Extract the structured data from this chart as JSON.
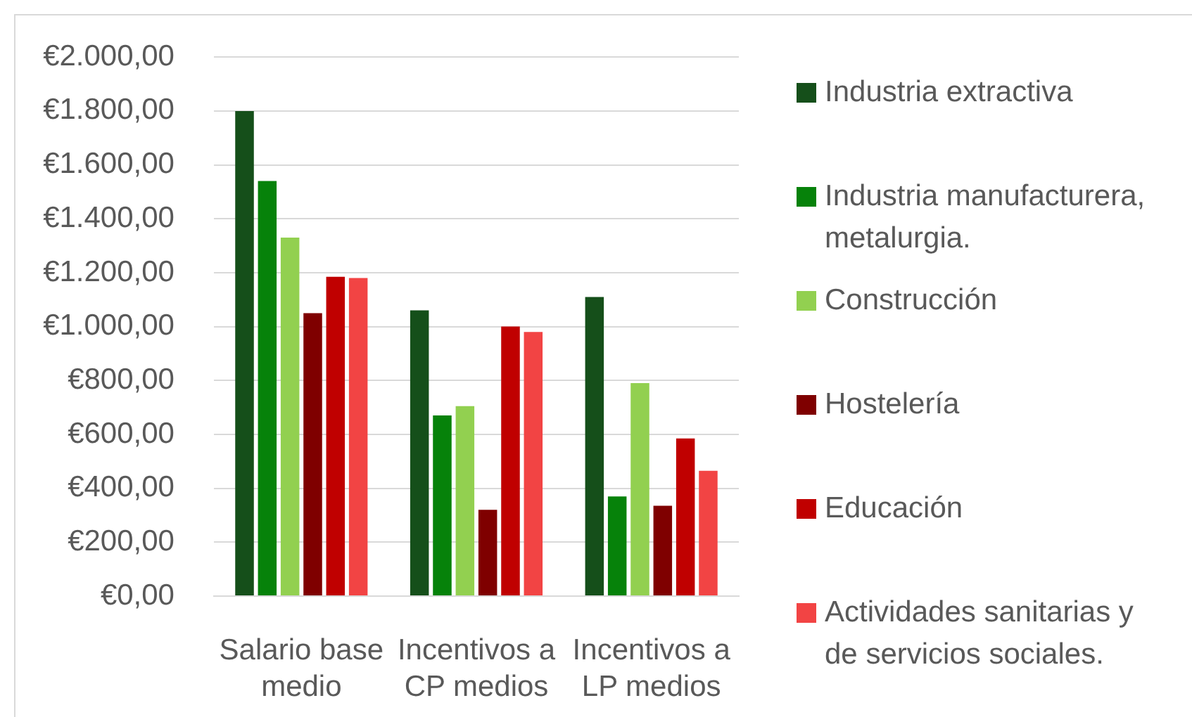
{
  "chart_data": {
    "type": "bar",
    "categories": [
      "Salario base medio",
      "Incentivos a CP medios",
      "Incentivos a LP medios"
    ],
    "series": [
      {
        "name": "Industria extractiva",
        "color": "#154f1a",
        "values": [
          1800,
          1060,
          1110
        ]
      },
      {
        "name": "Industria manufacturera, metalurgia.",
        "color": "#06820a",
        "values": [
          1540,
          670,
          370
        ]
      },
      {
        "name": "Construcción",
        "color": "#92d050",
        "values": [
          1330,
          705,
          790
        ]
      },
      {
        "name": "Hostelería",
        "color": "#7f0000",
        "values": [
          1050,
          320,
          335
        ]
      },
      {
        "name": "Educación",
        "color": "#c00000",
        "values": [
          1185,
          1000,
          585
        ]
      },
      {
        "name": "Actividades sanitarias y de servicios sociales.",
        "color": "#f24444",
        "values": [
          1180,
          980,
          465
        ]
      }
    ],
    "ylim": [
      0,
      2000
    ],
    "yticks": [
      {
        "value": 0,
        "label": "€0,00"
      },
      {
        "value": 200,
        "label": "€200,00"
      },
      {
        "value": 400,
        "label": "€400,00"
      },
      {
        "value": 600,
        "label": "€600,00"
      },
      {
        "value": 800,
        "label": "€800,00"
      },
      {
        "value": 1000,
        "label": "€1.000,00"
      },
      {
        "value": 1200,
        "label": "€1.200,00"
      },
      {
        "value": 1400,
        "label": "€1.400,00"
      },
      {
        "value": 1600,
        "label": "€1.600,00"
      },
      {
        "value": 1800,
        "label": "€1.800,00"
      },
      {
        "value": 2000,
        "label": "€2.000,00"
      }
    ],
    "grid": "y",
    "legend": "right"
  }
}
